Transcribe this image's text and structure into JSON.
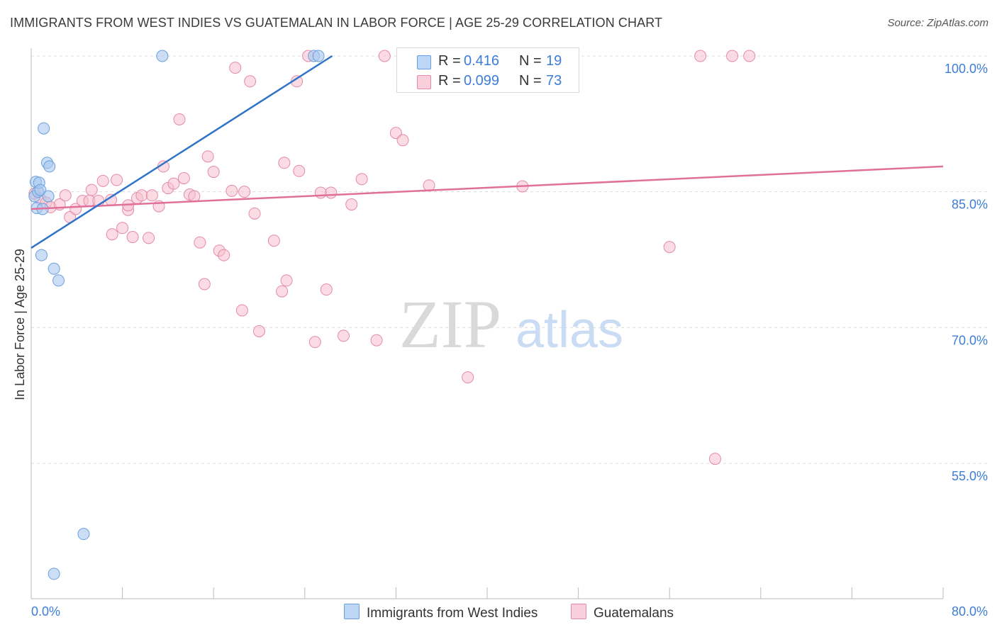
{
  "title": "IMMIGRANTS FROM WEST INDIES VS GUATEMALAN IN LABOR FORCE | AGE 25-29 CORRELATION CHART",
  "source": "Source: ZipAtlas.com",
  "watermark": {
    "zip": "ZIP",
    "atlas": "atlas"
  },
  "legend": {
    "series1": {
      "r_label": "R =",
      "r_value": "0.416",
      "n_label": "N =",
      "n_value": "19"
    },
    "series2": {
      "r_label": "R =",
      "r_value": "0.099",
      "n_label": "N =",
      "n_value": "73"
    }
  },
  "colors": {
    "blue_fill": "#a8c8f0",
    "blue_stroke": "#6a9fdc",
    "blue_line": "#2f74c9",
    "pink_fill": "#f7bfd0",
    "pink_stroke": "#e48aa8",
    "pink_line": "#e0709a",
    "tick_label": "#3d7dd8"
  },
  "chart_data": {
    "type": "scatter",
    "title": "IMMIGRANTS FROM WEST INDIES VS GUATEMALAN IN LABOR FORCE | AGE 25-29 CORRELATION CHART",
    "xlabel": "",
    "ylabel": "In Labor Force | Age 25-29",
    "xlim": [
      0,
      80
    ],
    "ylim": [
      42,
      101.5
    ],
    "x_tick_labels": [
      "0.0%",
      "80.0%"
    ],
    "y_ticks": [
      {
        "value": 100,
        "label": "100.0%"
      },
      {
        "value": 85,
        "label": "85.0%"
      },
      {
        "value": 70,
        "label": "70.0%"
      },
      {
        "value": 55,
        "label": "55.0%"
      }
    ],
    "series": [
      {
        "name": "Immigrants from West Indies",
        "color": "#a8c8f0",
        "points": [
          [
            0.3,
            84.5
          ],
          [
            0.4,
            86.1
          ],
          [
            0.5,
            83.2
          ],
          [
            0.6,
            85.0
          ],
          [
            0.7,
            86.0
          ],
          [
            0.8,
            85.2
          ],
          [
            0.9,
            78.0
          ],
          [
            1.0,
            83.1
          ],
          [
            1.1,
            92.0
          ],
          [
            1.4,
            88.2
          ],
          [
            1.5,
            84.5
          ],
          [
            1.6,
            87.8
          ],
          [
            2.0,
            76.5
          ],
          [
            2.4,
            75.2
          ],
          [
            4.6,
            47.2
          ],
          [
            2.0,
            42.8
          ],
          [
            11.5,
            100.0
          ],
          [
            24.8,
            100.0
          ],
          [
            25.2,
            100.0
          ]
        ],
        "trend": {
          "x": [
            0.0,
            26.4
          ],
          "y": [
            78.8,
            100.0
          ]
        }
      },
      {
        "name": "Guatemalans",
        "color": "#f7bfd0",
        "points": [
          [
            0.3,
            84.8
          ],
          [
            0.8,
            84.2
          ],
          [
            1.3,
            83.8
          ],
          [
            1.7,
            83.3
          ],
          [
            2.5,
            83.6
          ],
          [
            3.0,
            84.6
          ],
          [
            3.4,
            82.2
          ],
          [
            3.9,
            83.1
          ],
          [
            4.5,
            84.0
          ],
          [
            5.1,
            84.0
          ],
          [
            5.3,
            85.2
          ],
          [
            5.9,
            84.0
          ],
          [
            6.3,
            86.2
          ],
          [
            7.0,
            84.1
          ],
          [
            7.1,
            80.3
          ],
          [
            7.5,
            86.3
          ],
          [
            8.0,
            81.0
          ],
          [
            8.5,
            83.0
          ],
          [
            8.9,
            80.0
          ],
          [
            9.3,
            84.3
          ],
          [
            9.7,
            84.6
          ],
          [
            10.3,
            79.9
          ],
          [
            10.6,
            84.6
          ],
          [
            11.2,
            83.4
          ],
          [
            11.6,
            87.8
          ],
          [
            12.0,
            85.4
          ],
          [
            12.5,
            85.9
          ],
          [
            13.0,
            93.0
          ],
          [
            13.4,
            86.5
          ],
          [
            13.9,
            84.7
          ],
          [
            14.3,
            84.5
          ],
          [
            14.8,
            79.4
          ],
          [
            15.2,
            74.8
          ],
          [
            15.5,
            88.9
          ],
          [
            16.0,
            87.2
          ],
          [
            16.5,
            78.5
          ],
          [
            16.9,
            78.0
          ],
          [
            17.6,
            85.1
          ],
          [
            17.9,
            98.7
          ],
          [
            18.5,
            71.9
          ],
          [
            18.7,
            85.0
          ],
          [
            19.2,
            97.2
          ],
          [
            19.6,
            82.6
          ],
          [
            20.0,
            69.6
          ],
          [
            21.3,
            79.6
          ],
          [
            22.0,
            74.0
          ],
          [
            22.2,
            88.2
          ],
          [
            22.4,
            75.2
          ],
          [
            23.3,
            97.2
          ],
          [
            23.5,
            87.3
          ],
          [
            24.3,
            100.0
          ],
          [
            24.9,
            68.4
          ],
          [
            25.4,
            84.9
          ],
          [
            25.9,
            74.2
          ],
          [
            26.3,
            84.9
          ],
          [
            27.4,
            69.1
          ],
          [
            28.1,
            83.6
          ],
          [
            29.0,
            86.4
          ],
          [
            30.3,
            68.6
          ],
          [
            31.0,
            100.0
          ],
          [
            32.0,
            91.5
          ],
          [
            32.6,
            90.7
          ],
          [
            34.9,
            85.7
          ],
          [
            37.9,
            100.0
          ],
          [
            38.3,
            64.5
          ],
          [
            40.0,
            100.0
          ],
          [
            43.1,
            85.6
          ],
          [
            56.0,
            78.9
          ],
          [
            58.7,
            100.0
          ],
          [
            60.0,
            55.5
          ],
          [
            61.5,
            100.0
          ],
          [
            63.0,
            100.0
          ],
          [
            8.5,
            83.5
          ]
        ],
        "trend": {
          "x": [
            0.0,
            80.0
          ],
          "y": [
            83.1,
            87.8
          ]
        }
      }
    ],
    "legend": [
      "Immigrants from West Indies",
      "Guatemalans"
    ],
    "grid": true
  }
}
